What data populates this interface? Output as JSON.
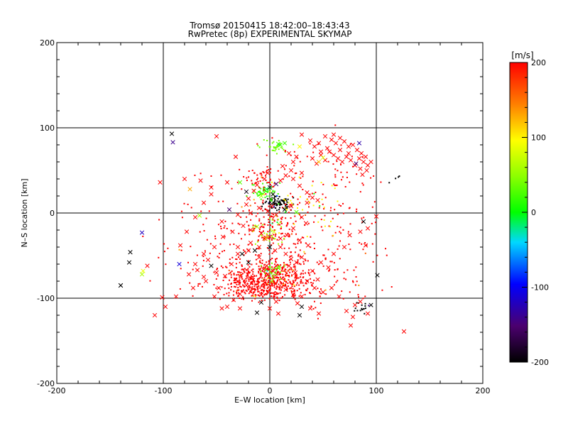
{
  "chart_data": {
    "type": "scatter",
    "title_line1": "Tromsø 20150415 18:42:00–18:43:43",
    "title_line2": "RwPretec (8p) EXPERIMENTAL SKYMAP",
    "xlabel": "E–W location [km]",
    "ylabel": "N–S location [km]",
    "xlim": [
      -200,
      200
    ],
    "ylim": [
      -200,
      200
    ],
    "xticks": [
      "-200",
      "-100",
      "0",
      "100",
      "200"
    ],
    "yticks": [
      "-200",
      "-100",
      "0",
      "100",
      "200"
    ],
    "grid": true,
    "colorbar": {
      "title": "[m/s]",
      "range": [
        -200,
        200
      ],
      "ticks": [
        "200",
        "100",
        "0",
        "-100",
        "-200"
      ]
    },
    "series_crosses": {
      "marker": "x",
      "points": [
        [
          -92,
          93,
          -200
        ],
        [
          -91,
          83,
          -140
        ],
        [
          -50,
          90,
          200
        ],
        [
          -103,
          36,
          200
        ],
        [
          -80,
          40,
          200
        ],
        [
          -75,
          28,
          130
        ],
        [
          -65,
          38,
          200
        ],
        [
          -55,
          30,
          200
        ],
        [
          -40,
          36,
          200
        ],
        [
          -28,
          36,
          30
        ],
        [
          -22,
          25,
          -190
        ],
        [
          -20,
          17,
          200
        ],
        [
          -15,
          26,
          200
        ],
        [
          -12,
          33,
          200
        ],
        [
          -5,
          40,
          200
        ],
        [
          -2,
          47,
          200
        ],
        [
          -8,
          20,
          60
        ],
        [
          -3,
          28,
          -10
        ],
        [
          0,
          30,
          -180
        ],
        [
          3,
          22,
          -200
        ],
        [
          6,
          34,
          -160
        ],
        [
          10,
          38,
          200
        ],
        [
          15,
          44,
          200
        ],
        [
          20,
          50,
          200
        ],
        [
          12,
          55,
          200
        ],
        [
          22,
          60,
          200
        ],
        [
          25,
          66,
          200
        ],
        [
          18,
          70,
          200
        ],
        [
          28,
          78,
          100
        ],
        [
          30,
          47,
          200
        ],
        [
          22,
          40,
          200
        ],
        [
          28,
          32,
          200
        ],
        [
          35,
          24,
          200
        ],
        [
          40,
          18,
          200
        ],
        [
          35,
          12,
          200
        ],
        [
          45,
          15,
          200
        ],
        [
          8,
          81,
          20
        ],
        [
          10,
          80,
          20
        ],
        [
          14,
          82,
          20
        ],
        [
          -32,
          66,
          200
        ],
        [
          30,
          92,
          200
        ],
        [
          38,
          85,
          200
        ],
        [
          42,
          78,
          200
        ],
        [
          48,
          72,
          200
        ],
        [
          52,
          90,
          200
        ],
        [
          58,
          86,
          200
        ],
        [
          62,
          82,
          200
        ],
        [
          66,
          88,
          200
        ],
        [
          70,
          84,
          200
        ],
        [
          74,
          78,
          200
        ],
        [
          78,
          80,
          200
        ],
        [
          82,
          74,
          200
        ],
        [
          86,
          70,
          200
        ],
        [
          90,
          66,
          200
        ],
        [
          88,
          60,
          200
        ],
        [
          92,
          56,
          200
        ],
        [
          85,
          52,
          200
        ],
        [
          80,
          56,
          200
        ],
        [
          76,
          62,
          200
        ],
        [
          72,
          66,
          200
        ],
        [
          68,
          60,
          200
        ],
        [
          64,
          64,
          200
        ],
        [
          60,
          68,
          200
        ],
        [
          56,
          72,
          200
        ],
        [
          52,
          62,
          200
        ],
        [
          48,
          68,
          200
        ],
        [
          44,
          58,
          200
        ],
        [
          40,
          64,
          200
        ],
        [
          46,
          82,
          200
        ],
        [
          54,
          76,
          200
        ],
        [
          60,
          92,
          200
        ],
        [
          66,
          74,
          200
        ],
        [
          74,
          70,
          200
        ],
        [
          84,
          64,
          200
        ],
        [
          91,
          50,
          200
        ],
        [
          87,
          45,
          200
        ],
        [
          81,
          58,
          -150
        ],
        [
          50,
          65,
          80
        ],
        [
          46,
          60,
          120
        ],
        [
          95,
          60,
          200
        ],
        [
          84,
          82,
          -130
        ],
        [
          -66,
          -3,
          60
        ],
        [
          -45,
          -10,
          200
        ],
        [
          -38,
          4,
          -150
        ],
        [
          -30,
          -2,
          200
        ],
        [
          -22,
          10,
          200
        ],
        [
          -18,
          0,
          200
        ],
        [
          -10,
          6,
          200
        ],
        [
          -2,
          2,
          200
        ],
        [
          2,
          8,
          200
        ],
        [
          6,
          -2,
          200
        ],
        [
          14,
          4,
          -200
        ],
        [
          20,
          8,
          200
        ],
        [
          25,
          1,
          30
        ],
        [
          30,
          -5,
          200
        ],
        [
          34,
          -12,
          200
        ],
        [
          -25,
          -15,
          200
        ],
        [
          -18,
          -20,
          200
        ],
        [
          -12,
          -16,
          60
        ],
        [
          -8,
          -24,
          200
        ],
        [
          -4,
          -30,
          80
        ],
        [
          0,
          -28,
          200
        ],
        [
          4,
          -22,
          80
        ],
        [
          10,
          -30,
          200
        ],
        [
          16,
          -26,
          200
        ],
        [
          22,
          -18,
          200
        ],
        [
          28,
          -32,
          200
        ],
        [
          -30,
          -40,
          200
        ],
        [
          -26,
          -48,
          -200
        ],
        [
          -20,
          -58,
          -200
        ],
        [
          -14,
          -44,
          -200
        ],
        [
          -10,
          -52,
          200
        ],
        [
          -6,
          -66,
          200
        ],
        [
          -2,
          -72,
          200
        ],
        [
          2,
          -80,
          60
        ],
        [
          -16,
          -75,
          200
        ],
        [
          -22,
          -85,
          200
        ],
        [
          -28,
          -95,
          200
        ],
        [
          -34,
          -102,
          200
        ],
        [
          -40,
          -110,
          200
        ],
        [
          -8,
          -105,
          -200
        ],
        [
          -12,
          -117,
          -200
        ],
        [
          30,
          -110,
          -200
        ],
        [
          6,
          -104,
          200
        ],
        [
          -140,
          -85,
          -200
        ],
        [
          -140,
          -85,
          -200
        ],
        [
          -131,
          -46,
          -200
        ],
        [
          -132,
          -58,
          -200
        ],
        [
          -119,
          -68,
          90
        ],
        [
          -120,
          -23,
          -120
        ],
        [
          -85,
          -60,
          -110
        ],
        [
          -88,
          -98,
          200
        ],
        [
          -68,
          -67,
          200
        ],
        [
          -60,
          -80,
          200
        ],
        [
          -52,
          -98,
          200
        ],
        [
          -45,
          -112,
          200
        ],
        [
          -72,
          -88,
          200
        ],
        [
          -58,
          -55,
          200
        ],
        [
          -52,
          -40,
          200
        ],
        [
          -44,
          -28,
          200
        ],
        [
          -35,
          -22,
          200
        ],
        [
          -55,
          -62,
          -200
        ],
        [
          -62,
          -75,
          200
        ],
        [
          -28,
          -112,
          200
        ],
        [
          -30,
          -80,
          200
        ],
        [
          -115,
          -62,
          200
        ],
        [
          -120,
          -72,
          60
        ],
        [
          -101,
          -99,
          200
        ],
        [
          -98,
          -110,
          200
        ],
        [
          -108,
          -120,
          200
        ],
        [
          126,
          -139,
          200
        ],
        [
          101,
          -73,
          -200
        ],
        [
          80,
          -108,
          200
        ],
        [
          72,
          -115,
          200
        ],
        [
          65,
          -98,
          200
        ],
        [
          58,
          -88,
          200
        ],
        [
          50,
          -93,
          200
        ],
        [
          45,
          -78,
          200
        ],
        [
          40,
          -68,
          200
        ],
        [
          48,
          -58,
          200
        ],
        [
          55,
          -64,
          200
        ],
        [
          60,
          -48,
          200
        ],
        [
          70,
          -40,
          200
        ],
        [
          75,
          -26,
          200
        ],
        [
          85,
          -22,
          200
        ],
        [
          90,
          -38,
          200
        ],
        [
          78,
          -122,
          200
        ],
        [
          76,
          -132,
          200
        ],
        [
          92,
          -118,
          200
        ],
        [
          85,
          -104,
          200
        ],
        [
          28,
          -120,
          -200
        ],
        [
          95,
          -108,
          -200
        ],
        [
          18,
          -62,
          200
        ],
        [
          24,
          -70,
          200
        ],
        [
          30,
          -52,
          200
        ],
        [
          36,
          -38,
          200
        ],
        [
          -84,
          -38,
          200
        ],
        [
          -78,
          -22,
          200
        ],
        [
          -70,
          -5,
          200
        ],
        [
          -62,
          12,
          200
        ],
        [
          -55,
          22,
          200
        ],
        [
          -5,
          -30,
          200
        ],
        [
          -18,
          -35,
          200
        ],
        [
          -30,
          -48,
          200
        ],
        [
          -36,
          -60,
          200
        ],
        [
          -42,
          -74,
          200
        ],
        [
          -48,
          -88,
          200
        ],
        [
          0,
          -40,
          -200
        ],
        [
          5,
          -44,
          200
        ],
        [
          10,
          -40,
          200
        ],
        [
          15,
          -48,
          200
        ],
        [
          20,
          -54,
          200
        ],
        [
          25,
          -58,
          200
        ],
        [
          -10,
          -40,
          200
        ],
        [
          -20,
          -44,
          200
        ],
        [
          -3,
          -62,
          200
        ],
        [
          3,
          -68,
          200
        ],
        [
          -8,
          -96,
          200
        ],
        [
          0,
          -112,
          200
        ],
        [
          8,
          -118,
          200
        ],
        [
          15,
          -90,
          200
        ],
        [
          22,
          -96,
          200
        ],
        [
          35,
          -80,
          200
        ],
        [
          42,
          -88,
          200
        ],
        [
          30,
          -98,
          200
        ],
        [
          26,
          -106,
          200
        ],
        [
          38,
          -112,
          200
        ],
        [
          46,
          -118,
          200
        ],
        [
          88,
          -10,
          -200
        ],
        [
          92,
          -18,
          200
        ],
        [
          100,
          -4,
          200
        ],
        [
          -62,
          -48,
          200
        ],
        [
          -70,
          -60,
          200
        ],
        [
          -76,
          -72,
          200
        ],
        [
          -50,
          -70,
          200
        ]
      ]
    },
    "series_dots": {
      "marker": "dot",
      "regions": [
        {
          "cx": 7,
          "cy": 12,
          "sx": 8,
          "sy": 5,
          "n": 90,
          "v": -200
        },
        {
          "cx": -5,
          "cy": 25,
          "sx": 8,
          "sy": 6,
          "n": 60,
          "v": 20
        },
        {
          "cx": 5,
          "cy": 78,
          "sx": 8,
          "sy": 5,
          "n": 30,
          "v": 40
        },
        {
          "cx": -10,
          "cy": 40,
          "sx": 12,
          "sy": 8,
          "n": 40,
          "v": 200
        },
        {
          "cx": 0,
          "cy": -20,
          "sx": 14,
          "sy": 16,
          "n": 90,
          "v": 200
        },
        {
          "cx": 0,
          "cy": -22,
          "sx": 10,
          "sy": 12,
          "n": 35,
          "v": 60
        },
        {
          "cx": 0,
          "cy": -78,
          "sx": 26,
          "sy": 14,
          "n": 520,
          "v": 200
        },
        {
          "cx": 0,
          "cy": -68,
          "sx": 8,
          "sy": 7,
          "n": 40,
          "v": 40
        },
        {
          "cx": -15,
          "cy": -88,
          "sx": 18,
          "sy": 9,
          "n": 90,
          "v": 200
        },
        {
          "cx": 85,
          "cy": -108,
          "sx": 5,
          "sy": 5,
          "n": 16,
          "v": -200
        },
        {
          "cx": 118,
          "cy": 40,
          "sx": 5,
          "sy": 3,
          "n": 4,
          "v": -200
        },
        {
          "cx": 45,
          "cy": 30,
          "sx": 40,
          "sy": 40,
          "n": 120,
          "v": 200
        },
        {
          "cx": -40,
          "cy": -30,
          "sx": 40,
          "sy": 45,
          "n": 130,
          "v": 200
        },
        {
          "cx": 40,
          "cy": -40,
          "sx": 40,
          "sy": 40,
          "n": 110,
          "v": 200
        },
        {
          "cx": 30,
          "cy": 5,
          "sx": 25,
          "sy": 20,
          "n": 40,
          "v": 100
        },
        {
          "cx": 60,
          "cy": -80,
          "sx": 30,
          "sy": 20,
          "n": 40,
          "v": 200
        }
      ]
    }
  }
}
